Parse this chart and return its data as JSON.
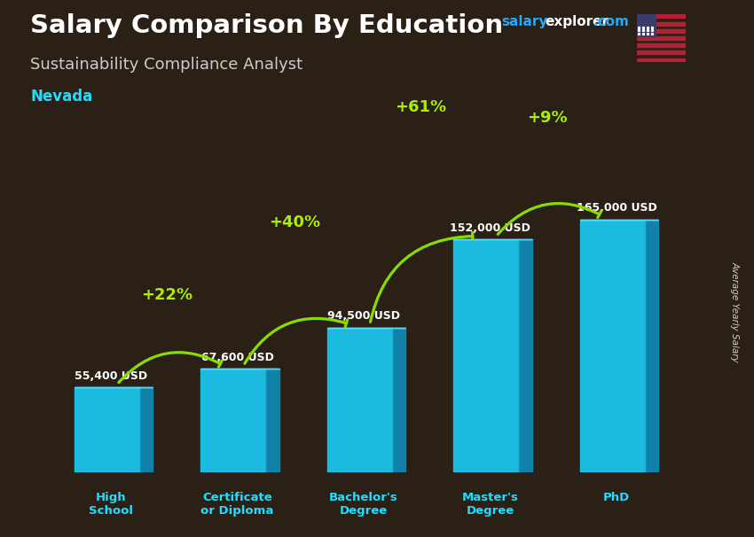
{
  "title": "Salary Comparison By Education",
  "subtitle": "Sustainability Compliance Analyst",
  "location": "Nevada",
  "ylabel": "Average Yearly Salary",
  "categories": [
    "High\nSchool",
    "Certificate\nor Diploma",
    "Bachelor's\nDegree",
    "Master's\nDegree",
    "PhD"
  ],
  "values": [
    55400,
    67600,
    94500,
    152000,
    165000
  ],
  "value_labels": [
    "55,400 USD",
    "67,600 USD",
    "94,500 USD",
    "152,000 USD",
    "165,000 USD"
  ],
  "pct_labels": [
    "+22%",
    "+40%",
    "+61%",
    "+9%"
  ],
  "bar_color_front": "#1BC8F0",
  "bar_color_side": "#0F8AB5",
  "bar_color_top": "#5CE0FF",
  "arrow_color": "#88DD00",
  "pct_color": "#AAEE00",
  "text_color_title": "#FFFFFF",
  "text_color_subtitle": "#CCCCCC",
  "text_color_location": "#22DDFF",
  "text_color_value": "#FFFFFF",
  "text_color_xlabel": "#22DDFF",
  "text_color_ylabel": "#CCCCCC",
  "background_color": "#2a2015",
  "ylim": [
    0,
    210000
  ],
  "brand_salary": "salary",
  "brand_explorer": "explorer",
  "brand_com": ".com",
  "brand_color_salary": "#22AAFF",
  "brand_color_explorer": "#FFFFFF",
  "brand_color_com": "#22AAFF"
}
